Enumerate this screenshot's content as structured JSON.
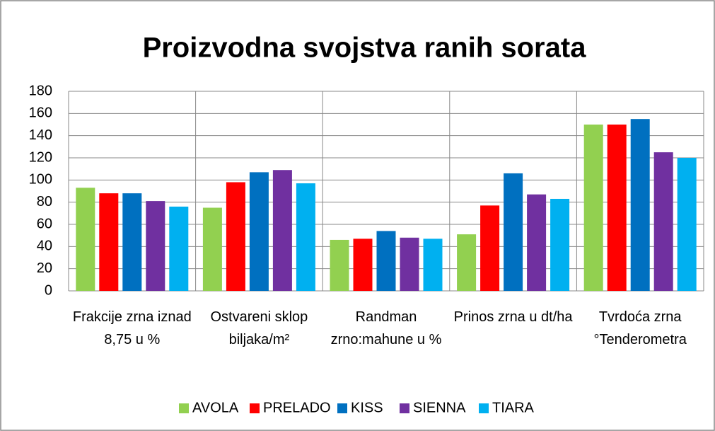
{
  "chart_data": {
    "type": "bar",
    "title": "Proizvodna svojstva ranih sorata",
    "categories": [
      "Frakcije zrna iznad 8,75 u %",
      "Ostvareni sklop biljaka/m²",
      "Randman zrno:mahune u %",
      "Prinos zrna u dt/ha",
      "Tvrdoća zrna °Tenderometra"
    ],
    "series": [
      {
        "name": "AVOLA",
        "color": "#92d050",
        "values": [
          93,
          75,
          46,
          51,
          150
        ]
      },
      {
        "name": "PRELADO",
        "color": "#ff0000",
        "values": [
          88,
          98,
          47,
          77,
          150
        ]
      },
      {
        "name": "KISS",
        "color": "#0070c0",
        "values": [
          88,
          107,
          54,
          106,
          155
        ]
      },
      {
        "name": "SIENNA",
        "color": "#7030a0",
        "values": [
          81,
          109,
          48,
          87,
          125
        ]
      },
      {
        "name": "TIARA",
        "color": "#00b0f0",
        "values": [
          76,
          97,
          47,
          83,
          120
        ]
      }
    ],
    "ylim": [
      0,
      180
    ],
    "yticks": [
      0,
      20,
      40,
      60,
      80,
      100,
      120,
      140,
      160,
      180
    ],
    "grid": true,
    "legend": "bottom"
  }
}
